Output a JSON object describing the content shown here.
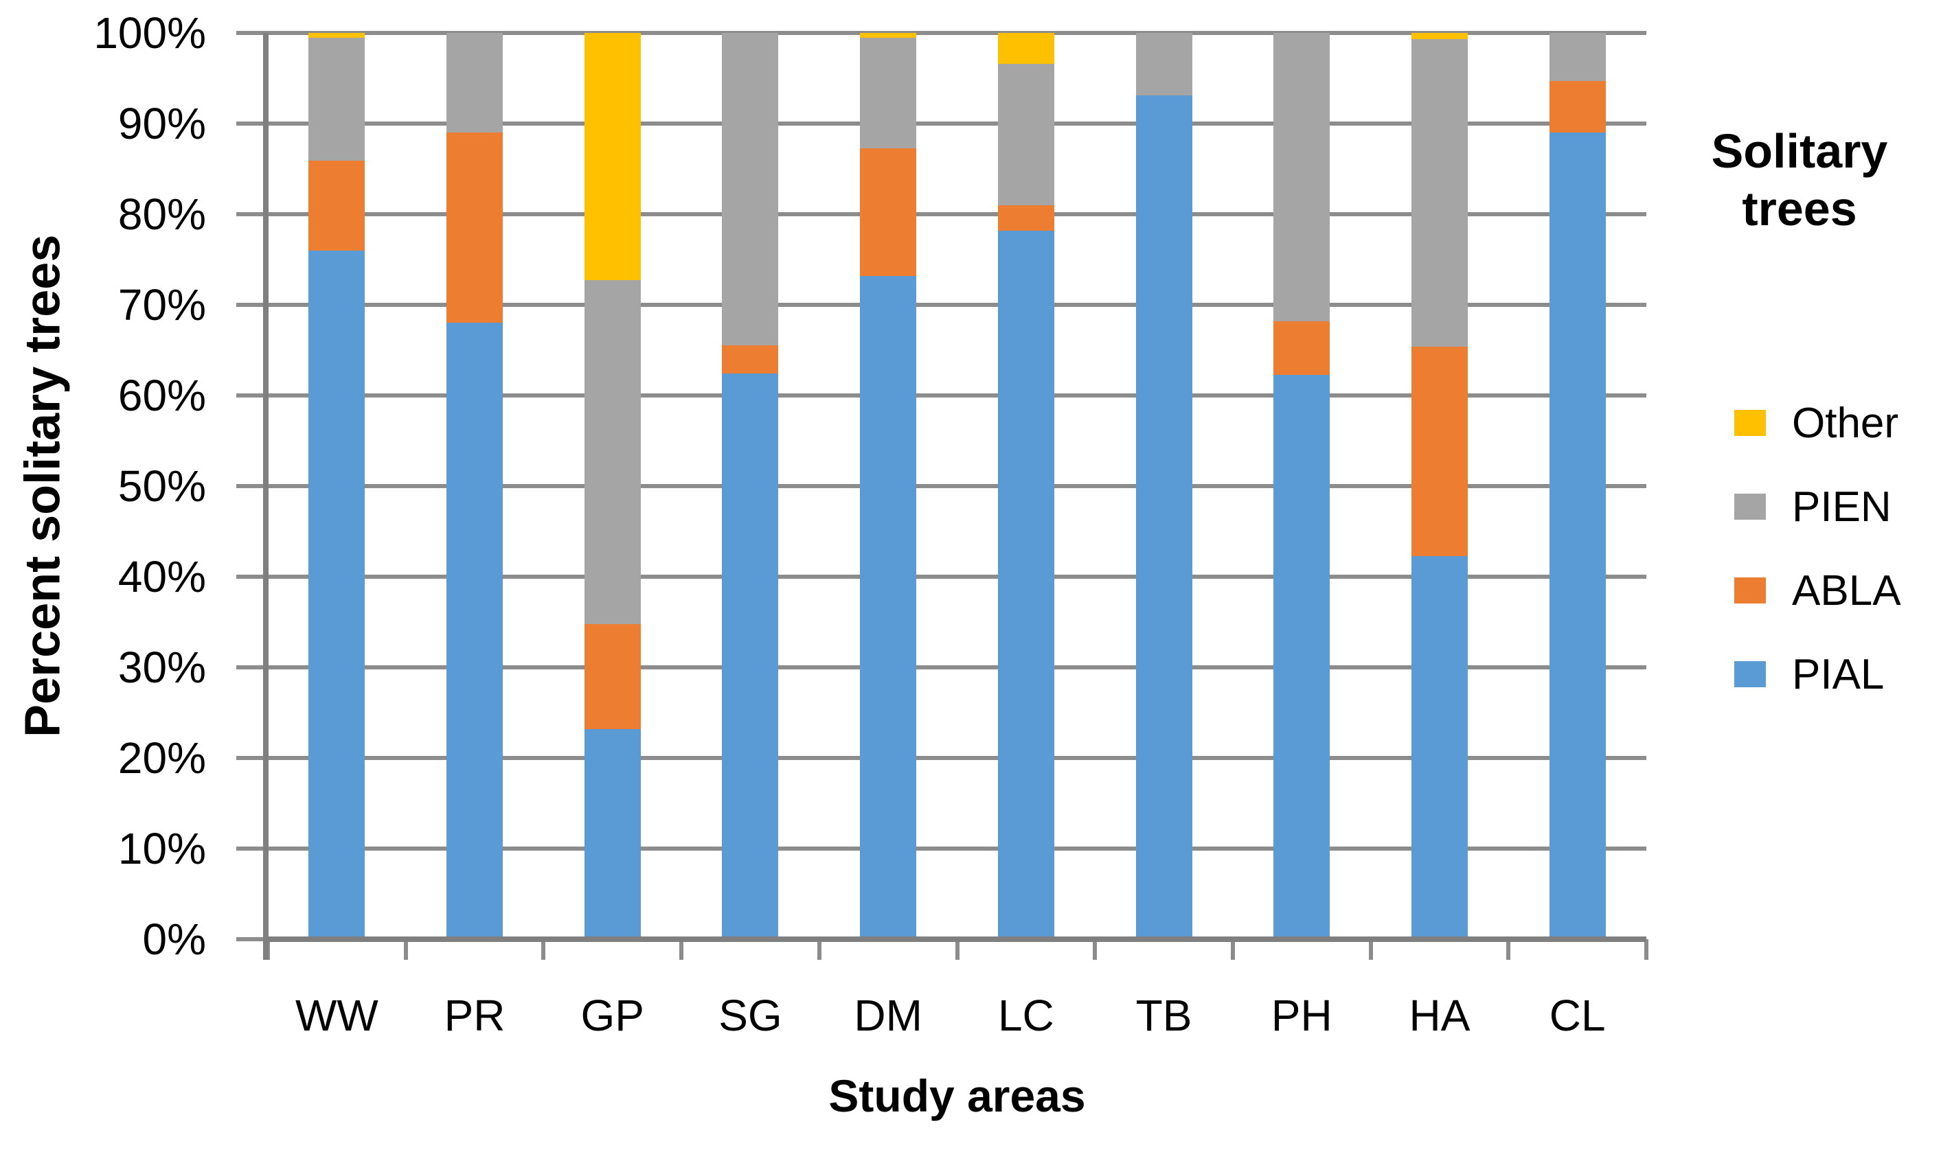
{
  "chart_data": {
    "type": "bar",
    "stacked": true,
    "percent_stacked": true,
    "categories": [
      "WW",
      "PR",
      "GP",
      "SG",
      "DM",
      "LC",
      "TB",
      "PH",
      "HA",
      "CL"
    ],
    "series": [
      {
        "name": "PIAL",
        "color": "#5B9BD5",
        "values": [
          76.0,
          68.0,
          23.2,
          62.4,
          73.2,
          78.2,
          93.1,
          62.3,
          42.3,
          89.0
        ]
      },
      {
        "name": "ABLA",
        "color": "#ED7D31",
        "values": [
          9.9,
          21.0,
          11.6,
          3.1,
          14.1,
          2.8,
          0,
          5.9,
          23.1,
          5.7
        ]
      },
      {
        "name": "PIEN",
        "color": "#A5A5A5",
        "values": [
          13.6,
          11.0,
          37.9,
          34.5,
          12.2,
          15.6,
          6.9,
          31.8,
          33.9,
          5.3
        ]
      },
      {
        "name": "Other",
        "color": "#FFC000",
        "values": [
          0.5,
          0,
          27.3,
          0,
          0.5,
          3.4,
          0,
          0,
          0.7,
          0
        ]
      }
    ],
    "xlabel": "Study areas",
    "ylabel": "Percent solitary trees",
    "ylim": [
      0,
      100
    ],
    "ytick_step": 10,
    "yticks": [
      "0%",
      "10%",
      "20%",
      "30%",
      "40%",
      "50%",
      "60%",
      "70%",
      "80%",
      "90%",
      "100%"
    ],
    "grid": true,
    "legend": {
      "title": "Solitary trees",
      "position": "right",
      "entries": [
        "Other",
        "PIEN",
        "ABLA",
        "PIAL"
      ]
    },
    "colors": {
      "grid": "#8C8C8C",
      "axis": "#7F7F7F",
      "text": "#000000",
      "background": "#FFFFFF"
    }
  }
}
